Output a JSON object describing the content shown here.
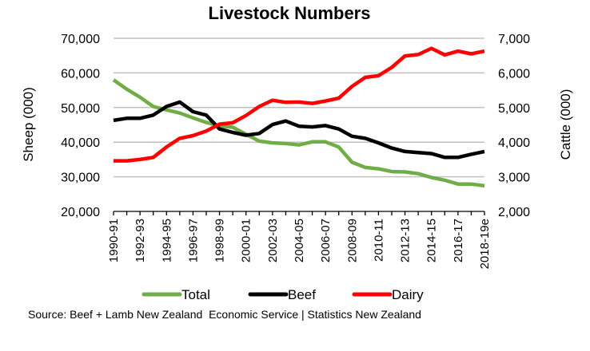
{
  "chart_data": {
    "type": "line",
    "title": "Livestock Numbers",
    "xlabel": "",
    "ylabel_left": "Sheep (000)",
    "ylabel_right": "Cattle (000)",
    "ylim_left": [
      20000,
      70000
    ],
    "ylim_right": [
      2000,
      7000
    ],
    "yticks_left": [
      "20,000",
      "30,000",
      "40,000",
      "50,000",
      "60,000",
      "70,000"
    ],
    "yticks_right": [
      "2,000",
      "3,000",
      "4,000",
      "5,000",
      "6,000",
      "7,000"
    ],
    "grid": true,
    "legend_position": "bottom",
    "x": [
      "1990-91",
      "1991-92",
      "1992-93",
      "1993-94",
      "1994-95",
      "1995-96",
      "1996-97",
      "1997-98",
      "1998-99",
      "1999-00",
      "2000-01",
      "2001-02",
      "2002-03",
      "2003-04",
      "2004-05",
      "2005-06",
      "2006-07",
      "2007-08",
      "2008-09",
      "2009-10",
      "2010-11",
      "2011-12",
      "2012-13",
      "2013-14",
      "2014-15",
      "2015-16",
      "2016-17",
      "2017-18",
      "2018-19e"
    ],
    "x_tick_labels": [
      "1990-91",
      "1992-93",
      "1994-95",
      "1996-97",
      "1998-99",
      "2000-01",
      "2002-03",
      "2004-05",
      "2006-07",
      "2008-09",
      "2010-11",
      "2012-13",
      "2014-15",
      "2016-17",
      "2018-19e"
    ],
    "series": [
      {
        "name": "Total",
        "axis": "left",
        "color": "#70ad47",
        "values": [
          58000,
          55300,
          53000,
          50300,
          49300,
          48400,
          47000,
          45700,
          44700,
          44300,
          42300,
          40300,
          39800,
          39600,
          39200,
          40100,
          40100,
          38600,
          34200,
          32700,
          32300,
          31500,
          31400,
          30900,
          29800,
          29000,
          27900,
          27900,
          27400
        ]
      },
      {
        "name": "Beef",
        "axis": "right",
        "color": "#000000",
        "values": [
          4630,
          4690,
          4690,
          4780,
          5030,
          5160,
          4880,
          4780,
          4380,
          4280,
          4200,
          4250,
          4510,
          4610,
          4460,
          4440,
          4480,
          4380,
          4170,
          4110,
          3980,
          3830,
          3730,
          3700,
          3670,
          3560,
          3560,
          3650,
          3730
        ]
      },
      {
        "name": "Dairy",
        "axis": "right",
        "color": "#ff0000",
        "values": [
          3460,
          3460,
          3500,
          3560,
          3860,
          4110,
          4190,
          4320,
          4520,
          4560,
          4770,
          5030,
          5210,
          5150,
          5160,
          5120,
          5190,
          5270,
          5610,
          5870,
          5920,
          6160,
          6490,
          6530,
          6710,
          6520,
          6630,
          6550,
          6630
        ]
      }
    ],
    "source": "Source: Beef + Lamb New Zealand  Economic Service | Statistics New Zealand"
  }
}
